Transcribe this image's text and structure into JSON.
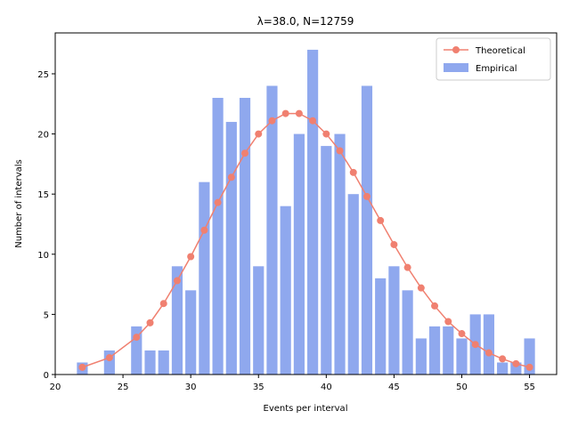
{
  "chart_data": {
    "type": "bar",
    "title": "λ=38.0, N=12759",
    "xlabel": "Events per interval",
    "ylabel": "Number of intervals",
    "xlim": [
      20,
      57
    ],
    "ylim": [
      0,
      28.4
    ],
    "xticks": [
      20,
      25,
      30,
      35,
      40,
      45,
      50,
      55
    ],
    "yticks": [
      0,
      5,
      10,
      15,
      20,
      25
    ],
    "legend_position": "top-right",
    "series": [
      {
        "name": "Empirical",
        "kind": "bar",
        "color": "#8fa8ee",
        "x": [
          22,
          24,
          26,
          27,
          28,
          29,
          30,
          31,
          32,
          33,
          34,
          35,
          36,
          37,
          38,
          39,
          40,
          41,
          42,
          43,
          44,
          45,
          46,
          47,
          48,
          49,
          50,
          51,
          52,
          53,
          54,
          55
        ],
        "values": [
          1,
          2,
          4,
          2,
          2,
          9,
          7,
          16,
          23,
          21,
          23,
          9,
          24,
          14,
          20,
          27,
          19,
          20,
          15,
          24,
          8,
          9,
          7,
          3,
          4,
          4,
          3,
          5,
          5,
          1,
          1,
          3
        ]
      },
      {
        "name": "Theoretical",
        "kind": "line",
        "color": "#f08070",
        "x": [
          22,
          24,
          26,
          27,
          28,
          29,
          30,
          31,
          32,
          33,
          34,
          35,
          36,
          37,
          38,
          39,
          40,
          41,
          42,
          43,
          44,
          45,
          46,
          47,
          48,
          49,
          50,
          51,
          52,
          53,
          54,
          55
        ],
        "values": [
          0.6,
          1.4,
          3.1,
          4.3,
          5.9,
          7.8,
          9.8,
          12.0,
          14.3,
          16.4,
          18.4,
          20.0,
          21.1,
          21.7,
          21.7,
          21.1,
          20.0,
          18.6,
          16.8,
          14.8,
          12.8,
          10.8,
          8.9,
          7.2,
          5.7,
          4.4,
          3.4,
          2.5,
          1.8,
          1.3,
          0.9,
          0.6
        ]
      }
    ]
  }
}
